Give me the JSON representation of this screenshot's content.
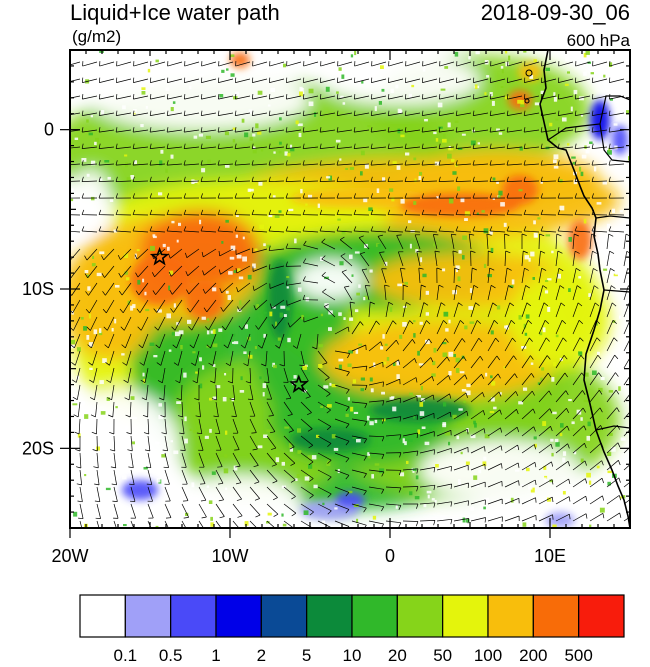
{
  "header": {
    "title": "Liquid+Ice water path",
    "units": "(g/m2)",
    "datetime": "2018-09-30_06",
    "level": "600 hPa"
  },
  "axes": {
    "lon_labels": [
      "20W",
      "10W",
      "0",
      "10E"
    ],
    "lon_values": [
      -20,
      -10,
      0,
      10
    ],
    "lat_labels": [
      "0",
      "10S",
      "20S"
    ],
    "lat_values": [
      0,
      -10,
      -20
    ],
    "lon_range": [
      -20,
      15
    ],
    "lat_range": [
      -25,
      5
    ]
  },
  "markers": [
    {
      "name": "star-marker",
      "lon": -14.4,
      "lat": -8.0
    },
    {
      "name": "star-marker",
      "lon": -5.7,
      "lat": -16.0
    }
  ],
  "colorbar": {
    "labels": [
      "0.1",
      "0.5",
      "1",
      "2",
      "5",
      "10",
      "20",
      "50",
      "100",
      "200",
      "500"
    ],
    "colors": [
      "#ffffff",
      "#a0a0f8",
      "#4a4af8",
      "#0000e8",
      "#0a4a96",
      "#0c8a3a",
      "#30b82a",
      "#86d41a",
      "#e4f40c",
      "#f8be0c",
      "#f86c08",
      "#f81c0c"
    ]
  }
}
